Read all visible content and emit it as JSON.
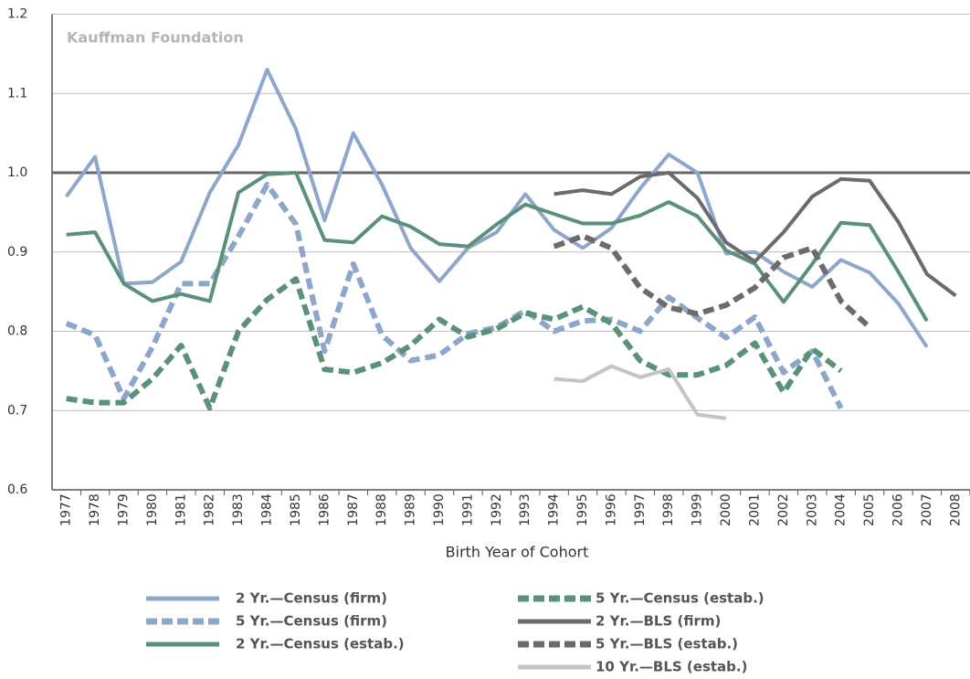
{
  "chart_data": {
    "type": "line",
    "annotation": "Kauffman Foundation",
    "xlabel": "Birth Year of Cohort",
    "categories": [
      "1977",
      "1978",
      "1979",
      "1980",
      "1981",
      "1982",
      "1983",
      "1984",
      "1985",
      "1986",
      "1987",
      "1988",
      "1989",
      "1990",
      "1991",
      "1992",
      "1993",
      "1994",
      "1995",
      "1996",
      "1997",
      "1998",
      "1999",
      "2000",
      "2001",
      "2002",
      "2003",
      "2004",
      "2005",
      "2006",
      "2007",
      "2008"
    ],
    "ylim": [
      0.6,
      1.2
    ],
    "yticks": [
      0.6,
      0.7,
      0.8,
      0.9,
      {
        "value": 1,
        "label": "1.0"
      },
      1.1,
      1.2
    ],
    "grid": true,
    "reference_line": 1,
    "series": [
      {
        "name": "2 Yr.—Census (firm)",
        "color": "#8fa6cc",
        "dashed": false,
        "values": [
          0.97,
          1.02,
          0.86,
          0.862,
          0.888,
          0.975,
          1.035,
          1.13,
          1.055,
          0.94,
          1.05,
          0.985,
          0.905,
          0.863,
          0.905,
          0.925,
          0.973,
          0.928,
          0.905,
          0.93,
          0.98,
          1.023,
          1.0,
          0.898,
          0.9,
          0.875,
          0.856,
          0.89,
          0.874,
          0.835,
          0.78,
          null
        ]
      },
      {
        "name": "5 Yr.—Census (firm)",
        "color": "#8fa6cc",
        "dashed": true,
        "values": [
          0.81,
          0.795,
          0.715,
          0.78,
          0.86,
          0.86,
          0.92,
          0.985,
          0.935,
          0.775,
          0.885,
          0.795,
          0.763,
          0.77,
          0.797,
          0.805,
          0.826,
          0.8,
          0.813,
          0.815,
          0.8,
          0.843,
          0.817,
          0.792,
          0.818,
          0.748,
          0.775,
          0.703,
          null,
          null,
          null,
          null
        ]
      },
      {
        "name": "2 Yr.—Census (estab.)",
        "color": "#5a9178",
        "dashed": false,
        "values": [
          0.922,
          0.925,
          0.86,
          0.838,
          0.847,
          0.838,
          0.975,
          0.998,
          1.0,
          0.915,
          0.912,
          0.945,
          0.932,
          0.91,
          0.907,
          0.935,
          0.96,
          0.948,
          0.936,
          0.936,
          0.946,
          0.963,
          0.945,
          0.902,
          0.885,
          0.837,
          0.885,
          0.937,
          0.934,
          0.875,
          0.813,
          null
        ]
      },
      {
        "name": "5 Yr.—Census (estab.)",
        "color": "#5a9178",
        "dashed": true,
        "values": [
          0.715,
          0.71,
          0.71,
          0.74,
          0.782,
          0.703,
          0.8,
          0.84,
          0.866,
          0.752,
          0.748,
          0.76,
          0.782,
          0.815,
          0.793,
          0.803,
          0.823,
          0.815,
          0.831,
          0.81,
          0.763,
          0.745,
          0.745,
          0.757,
          0.785,
          0.723,
          0.778,
          0.75,
          null,
          null,
          null,
          null
        ]
      },
      {
        "name": "2 Yr.—BLS (firm)",
        "color": "#6b6b6b",
        "dashed": false,
        "values": [
          null,
          null,
          null,
          null,
          null,
          null,
          null,
          null,
          null,
          null,
          null,
          null,
          null,
          null,
          null,
          null,
          null,
          0.973,
          0.978,
          0.973,
          0.995,
          1.0,
          0.968,
          0.912,
          0.888,
          0.925,
          0.97,
          0.992,
          0.99,
          0.938,
          0.872,
          0.845
        ]
      },
      {
        "name": "5 Yr.—BLS (estab.)",
        "color": "#6b6b6b",
        "dashed": true,
        "values": [
          null,
          null,
          null,
          null,
          null,
          null,
          null,
          null,
          null,
          null,
          null,
          null,
          null,
          null,
          null,
          null,
          null,
          0.907,
          0.92,
          0.905,
          0.855,
          0.83,
          0.822,
          0.833,
          0.855,
          0.893,
          0.905,
          0.838,
          0.805,
          null,
          null,
          null
        ]
      },
      {
        "name": "10 Yr.—BLS (estab.)",
        "color": "#c4c4c4",
        "dashed": false,
        "values": [
          null,
          null,
          null,
          null,
          null,
          null,
          null,
          null,
          null,
          null,
          null,
          null,
          null,
          null,
          null,
          null,
          null,
          0.74,
          0.737,
          0.756,
          0.742,
          0.752,
          0.695,
          0.69,
          null,
          null,
          null,
          null,
          null,
          null,
          null,
          null
        ]
      }
    ]
  }
}
